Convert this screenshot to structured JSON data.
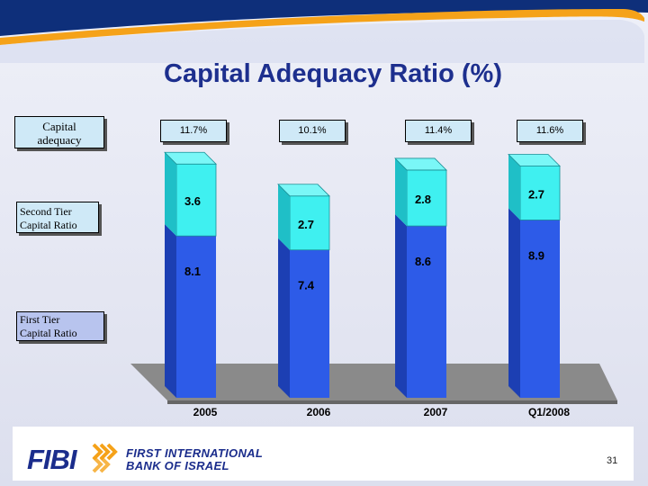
{
  "colors": {
    "second_tier": "#3ff0f0",
    "second_tier_side": "#1fbfc7",
    "first_tier": "#2d5be8",
    "first_tier_side": "#1c3fb3",
    "top_face": "#7af7f7",
    "floor": "#8a8a8a",
    "title": "#1d2f8e",
    "banner": "#0e2f7a",
    "accent": "#f5a219"
  },
  "title": "Capital Adequacy Ratio (%)",
  "legend": {
    "total_line1": "Capital",
    "total_line2": "adequacy",
    "second_line1": "Second Tier",
    "second_line2": "Capital Ratio",
    "first_line1": "First Tier",
    "first_line2": "Capital Ratio"
  },
  "chart_data": {
    "type": "bar",
    "stacked": true,
    "title": "Capital Adequacy Ratio (%)",
    "categories": [
      "2005",
      "2006",
      "2007",
      "Q1/2008"
    ],
    "series": [
      {
        "name": "First Tier Capital Ratio",
        "values": [
          8.1,
          7.4,
          8.6,
          8.9
        ]
      },
      {
        "name": "Second Tier Capital Ratio",
        "values": [
          3.6,
          2.7,
          2.8,
          2.7
        ]
      }
    ],
    "first_labels": [
      "8.1",
      "7.4",
      "8.6",
      "8.9"
    ],
    "second_labels": [
      "3.6",
      "2.7",
      "2.8",
      "2.7"
    ],
    "totals": [
      "11.7%",
      "10.1%",
      "11.4%",
      "11.6%"
    ],
    "xlabel": "",
    "ylabel": "",
    "ylim": [
      0,
      12
    ]
  },
  "footer": {
    "logo_text": "FIBI",
    "bank_line1": "FIRST INTERNATIONAL",
    "bank_line2": "BANK OF ISRAEL",
    "page_number": "31"
  }
}
